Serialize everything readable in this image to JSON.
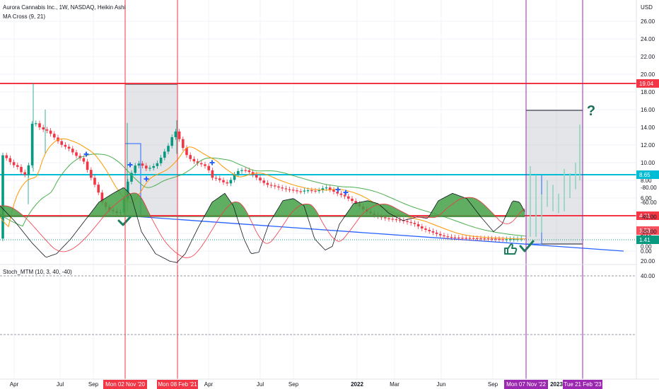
{
  "header": {
    "title": "Aurora Cannabis Inc., 1W, NASDAQ, Heikin Ashi",
    "indicator": "MA Cross (9, 21)",
    "currency": "USD"
  },
  "lower_header": {
    "indicator": "Stoch_MTM (10, 3, 40, -40)"
  },
  "x_axis": {
    "ticks": [
      "Apr",
      "Jul",
      "Sep",
      "Apr",
      "Jul",
      "Sep",
      "2022",
      "Mar",
      "Jun",
      "Sep",
      "2023"
    ],
    "markers": [
      "Mon 02 Nov '20",
      "Mon 08 Feb '21",
      "Mon 07 Nov '22",
      "Tue 21 Feb '23"
    ]
  },
  "price_axis": {
    "ticks": [
      "26.00",
      "24.00",
      "22.00",
      "20.00",
      "18.00",
      "16.00",
      "14.00",
      "12.00",
      "10.00",
      "8.00",
      "6.00",
      "4.00",
      "2.00",
      "0.00"
    ],
    "tags": [
      {
        "text": "19.04",
        "color": "#f23645"
      },
      {
        "text": "8.65",
        "color": "#00bcd4"
      },
      {
        "text": "4.01",
        "color": "#f23645"
      },
      {
        "text": "1.53",
        "color": "#f7525f"
      },
      {
        "text": "1.41",
        "color": "#089981"
      }
    ]
  },
  "osc_axis": {
    "ticks": [
      "40.00",
      "20.00",
      "0.00",
      "-20.00",
      "-40.00",
      "-60.00",
      "-80.00"
    ]
  },
  "annotations": {
    "question": "?"
  },
  "chart_data": {
    "type": "candlestick",
    "title": "Aurora Cannabis Inc., 1W, NASDAQ, Heikin Ashi",
    "indicator": "MA Cross (9, 21)",
    "ylim": [
      -1,
      27
    ],
    "horizontal_levels": [
      {
        "value": 19.04,
        "color": "#f23645"
      },
      {
        "value": 8.65,
        "color": "#00bcd4"
      },
      {
        "value": 4.01,
        "color": "#f23645"
      }
    ],
    "last_values": {
      "ma_fast": 1.53,
      "price": 1.41
    },
    "oscillator": {
      "name": "Stoch_MTM (10, 3, 40, -40)",
      "ylim": [
        -88,
        48
      ],
      "levels": [
        40,
        -40
      ]
    }
  },
  "colors": {
    "up": "#089981",
    "down": "#f23645",
    "ma_fast": "#ff9800",
    "ma_slow": "#4caf50",
    "trend": "#2962ff",
    "vline_red": "#f23645",
    "vline_purple": "#9c27b0",
    "osc_fill": "#43a047"
  }
}
